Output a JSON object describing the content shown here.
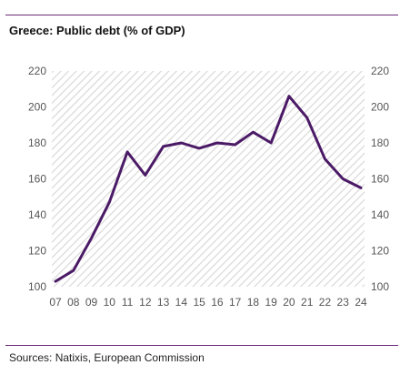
{
  "title": "Greece: Public debt (% of GDP)",
  "source": "Sources: Natixis, European Commission",
  "colors": {
    "line": "#4b1a66",
    "rule": "#6b2c7a",
    "hatch": "#d8d8d8",
    "text": "#555555"
  },
  "chart_data": {
    "type": "line",
    "title": "Greece: Public debt (% of GDP)",
    "xlabel": "",
    "ylabel": "",
    "categories": [
      "07",
      "08",
      "09",
      "10",
      "11",
      "12",
      "13",
      "14",
      "15",
      "16",
      "17",
      "18",
      "19",
      "20",
      "21",
      "22",
      "23",
      "24"
    ],
    "series": [
      {
        "values": [
          103,
          109,
          127,
          147,
          175,
          162,
          178,
          180,
          177,
          180,
          179,
          186,
          180,
          206,
          194,
          171,
          160,
          155
        ]
      }
    ],
    "ylim": [
      100,
      220
    ],
    "yticks": [
      100,
      120,
      140,
      160,
      180,
      200,
      220
    ],
    "y_axis_sides": "both",
    "grid": false,
    "background": "diagonal hatch"
  }
}
